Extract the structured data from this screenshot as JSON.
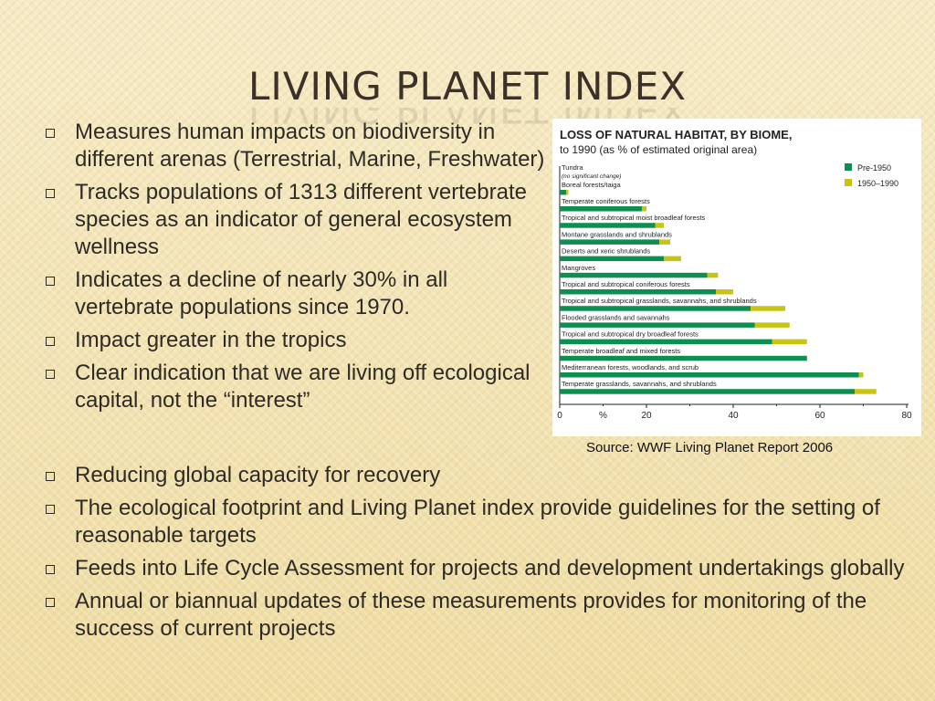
{
  "slide": {
    "title": "LIVING PLANET INDEX",
    "bullets_top": [
      "Measures human impacts on biodiversity in different arenas (Terrestrial, Marine, Freshwater)",
      "Tracks populations of 1313 different vertebrate species as an indicator of general ecosystem wellness",
      "Indicates a decline of nearly 30% in all vertebrate populations since 1970.",
      "Impact greater in the tropics",
      "Clear indication that we are living off ecological capital, not the “interest”"
    ],
    "bullets_bottom": [
      "Reducing global capacity for recovery",
      "The ecological footprint and Living Planet index provide guidelines for the setting of reasonable targets",
      "Feeds into Life Cycle Assessment for projects and development undertakings globally",
      "Annual or biannual updates of these measurements provides for monitoring of the success of current projects"
    ],
    "source": "Source: WWF Living Planet Report 2006"
  },
  "chart_data": {
    "type": "bar",
    "title": "LOSS OF NATURAL HABITAT, BY BIOME,",
    "subtitle": "to 1990 (as % of estimated original area)",
    "xlabel": "%",
    "xlim": [
      0,
      80
    ],
    "xticks": [
      0,
      20,
      40,
      60,
      80
    ],
    "legend_position": "top-right",
    "categories": [
      "Tundra",
      "Boreal forests/taiga",
      "Temperate coniferous forests",
      "Tropical and subtropical moist broadleaf forests",
      "Montane grasslands and shrublands",
      "Deserts and xeric shrublands",
      "Mangroves",
      "Tropical and subtropical coniferous forests",
      "Tropical and subtropical grasslands, savannahs, and shrublands",
      "Flooded grasslands and savannahs",
      "Tropical and subtropical dry broadleaf forests",
      "Temperate broadleaf and mixed forests",
      "Mediterranean forests, woodlands, and scrub",
      "Temperate grasslands, savannahs, and shrublands"
    ],
    "category_notes": {
      "Tundra": "(no significant change)"
    },
    "series": [
      {
        "name": "Pre-1950",
        "color": "#0e8f52",
        "values": [
          0,
          1.5,
          19,
          22,
          23,
          24,
          34,
          36,
          44,
          45,
          49,
          57,
          69,
          68
        ]
      },
      {
        "name": "1950–1990",
        "color": "#c8c417",
        "values": [
          0,
          0.5,
          1,
          2,
          2.5,
          4,
          2.5,
          4,
          8,
          8,
          8,
          0,
          1,
          5
        ]
      }
    ]
  }
}
